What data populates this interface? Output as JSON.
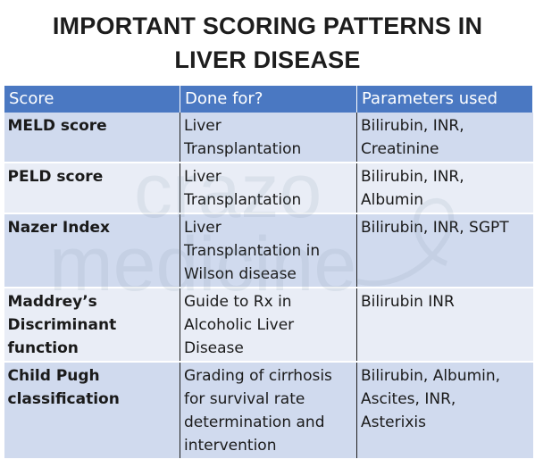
{
  "title": {
    "line1": "IMPORTANT SCORING PATTERNS IN",
    "line2": "LIVER DISEASE"
  },
  "watermark": {
    "line1": "crazo",
    "line2": "medicine"
  },
  "table": {
    "headers": [
      "Score",
      "Done for?",
      "Parameters used"
    ],
    "rows": [
      {
        "score": "MELD score",
        "done_for": "Liver\nTransplantation",
        "parameters": "Bilirubin, INR,\nCreatinine"
      },
      {
        "score": "PELD score",
        "done_for": "Liver\nTransplantation",
        "parameters": "Bilirubin, INR,\nAlbumin"
      },
      {
        "score": "Nazer Index",
        "done_for": "Liver\nTransplantation in\nWilson disease",
        "parameters": "Bilirubin, INR, SGPT"
      },
      {
        "score": "Maddrey’s\nDiscriminant\nfunction",
        "done_for": "Guide to Rx in\nAlcoholic Liver\nDisease",
        "parameters": "Bilirubin INR"
      },
      {
        "score": "Child Pugh\nclassification",
        "done_for": "Grading of cirrhosis\nfor survival rate\ndetermination and\nintervention",
        "parameters": "Bilirubin, Albumin,\nAscites, INR,\nAsterixis"
      }
    ]
  },
  "colors": {
    "header_bg": "#4a78c2",
    "row_odd_bg": "#d0daee",
    "row_even_bg": "#e9edf6"
  }
}
